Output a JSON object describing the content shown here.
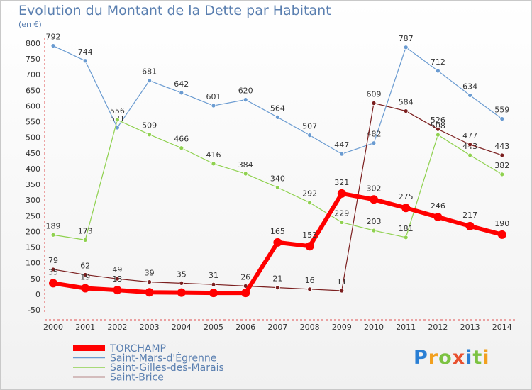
{
  "header": {
    "title": "Evolution du Montant de la Dette par Habitant",
    "subtitle": "(en €)"
  },
  "logo": {
    "text": "Proxiti"
  },
  "chart_data": {
    "type": "line",
    "title": "Evolution du Montant de la Dette par Habitant",
    "ylabel": "(en €)",
    "xlabel": "",
    "ylim": [
      -50,
      800
    ],
    "yticks": [
      -50,
      0,
      50,
      100,
      150,
      200,
      250,
      300,
      350,
      400,
      450,
      500,
      550,
      600,
      650,
      700,
      750,
      800
    ],
    "x": [
      "2000",
      "2001",
      "2002",
      "2003",
      "2004",
      "2005",
      "2006",
      "2007",
      "2008",
      "2009",
      "2010",
      "2011",
      "2012",
      "2013",
      "2014"
    ],
    "grid": false,
    "legend_position": "bottom-left",
    "series": [
      {
        "name": "TORCHAMP",
        "color": "#ff0000",
        "values": [
          35,
          19,
          13,
          6,
          5,
          4,
          4,
          165,
          153,
          321,
          302,
          275,
          246,
          217,
          190
        ],
        "labels": [
          "35",
          "19",
          "13",
          "",
          "",
          "",
          "",
          "165",
          "153",
          "321",
          "302",
          "275",
          "246",
          "217",
          "190"
        ]
      },
      {
        "name": "Saint-Mars-d'Égrenne",
        "color": "#6a9bd1",
        "values": [
          792,
          744,
          531,
          681,
          642,
          601,
          620,
          564,
          507,
          447,
          482,
          787,
          712,
          634,
          559
        ],
        "labels": [
          "792",
          "744",
          "531",
          "681",
          "642",
          "601",
          "620",
          "564",
          "507",
          "447",
          "482",
          "787",
          "712",
          "634",
          "559"
        ]
      },
      {
        "name": "Saint-Gilles-des-Marais",
        "color": "#8fd14f",
        "values": [
          189,
          173,
          556,
          509,
          466,
          416,
          384,
          340,
          292,
          229,
          203,
          181,
          508,
          443,
          382
        ],
        "labels": [
          "189",
          "173",
          "556",
          "509",
          "466",
          "416",
          "384",
          "340",
          "292",
          "229",
          "203",
          "181",
          "508",
          "443",
          "382"
        ]
      },
      {
        "name": "Saint-Brice",
        "color": "#7b1f1f",
        "values": [
          79,
          62,
          49,
          39,
          35,
          31,
          26,
          21,
          16,
          11,
          609,
          584,
          526,
          477,
          443
        ],
        "labels": [
          "79",
          "62",
          "49",
          "39",
          "35",
          "31",
          "26",
          "21",
          "16",
          "11",
          "609",
          "584",
          "526",
          "477",
          "443"
        ]
      }
    ]
  }
}
